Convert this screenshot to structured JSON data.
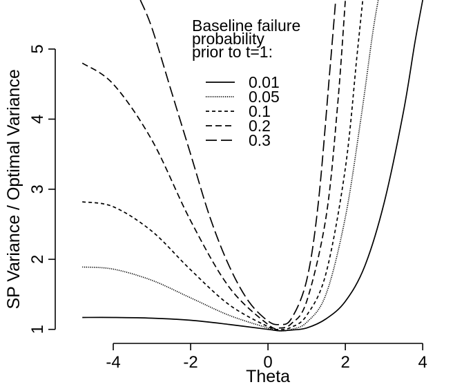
{
  "chart_data": {
    "type": "line",
    "title": "",
    "xlabel": "Theta",
    "ylabel": "SP Variance / Optimal Variance",
    "xlim": [
      -5.5,
      5.3
    ],
    "ylim": [
      0.8,
      5.7
    ],
    "x_ticks": [
      -4,
      -2,
      0,
      2,
      4
    ],
    "x_tick_labels": [
      "-4",
      "-2",
      "0",
      "2",
      "4"
    ],
    "y_ticks": [
      1,
      2,
      3,
      4,
      5
    ],
    "y_tick_labels": [
      "1",
      "2",
      "3",
      "4",
      "5"
    ],
    "grid": false,
    "legend": {
      "placement": "top-center",
      "title_lines": [
        "Baseline failure",
        "probability",
        "prior to t=1:"
      ]
    },
    "series": [
      {
        "name": "0.01",
        "line_style": "solid",
        "x": [
          -4.8,
          -4.0,
          -3.0,
          -2.0,
          -1.0,
          0.0,
          0.3,
          0.6,
          1.0,
          1.5,
          2.0,
          2.5,
          3.0,
          3.5,
          3.8,
          4.0
        ],
        "y": [
          1.17,
          1.17,
          1.16,
          1.13,
          1.07,
          1.0,
          0.98,
          0.99,
          1.02,
          1.15,
          1.4,
          1.9,
          2.8,
          4.1,
          5.1,
          5.7
        ]
      },
      {
        "name": "0.05",
        "line_style": "dotted",
        "x": [
          -4.8,
          -4.0,
          -3.0,
          -2.0,
          -1.0,
          0.0,
          0.3,
          0.6,
          1.0,
          1.5,
          2.0,
          2.4,
          2.7,
          2.85
        ],
        "y": [
          1.89,
          1.86,
          1.7,
          1.45,
          1.2,
          1.02,
          0.98,
          1.0,
          1.1,
          1.5,
          2.6,
          4.0,
          5.2,
          5.7
        ]
      },
      {
        "name": "0.1",
        "line_style": "short-dash",
        "x": [
          -4.8,
          -4.0,
          -3.0,
          -2.0,
          -1.0,
          0.0,
          0.3,
          0.6,
          1.0,
          1.5,
          2.0,
          2.3,
          2.45
        ],
        "y": [
          2.82,
          2.75,
          2.4,
          1.85,
          1.35,
          1.04,
          1.0,
          1.03,
          1.2,
          1.8,
          3.3,
          4.9,
          5.7
        ]
      },
      {
        "name": "0.2",
        "line_style": "dash",
        "x": [
          -4.8,
          -4.0,
          -3.0,
          -2.0,
          -1.0,
          0.0,
          0.3,
          0.6,
          1.0,
          1.5,
          1.8,
          2.0
        ],
        "y": [
          4.8,
          4.5,
          3.7,
          2.55,
          1.6,
          1.07,
          1.02,
          1.08,
          1.4,
          2.6,
          4.2,
          5.7
        ]
      },
      {
        "name": "0.3",
        "line_style": "long-dash",
        "x": [
          -3.3,
          -3.0,
          -2.5,
          -2.0,
          -1.5,
          -1.0,
          -0.5,
          0.0,
          0.3,
          0.6,
          1.0,
          1.3,
          1.6,
          1.75
        ],
        "y": [
          5.7,
          5.3,
          4.4,
          3.5,
          2.6,
          1.9,
          1.4,
          1.12,
          1.07,
          1.15,
          1.7,
          2.8,
          4.7,
          5.7
        ]
      }
    ]
  }
}
